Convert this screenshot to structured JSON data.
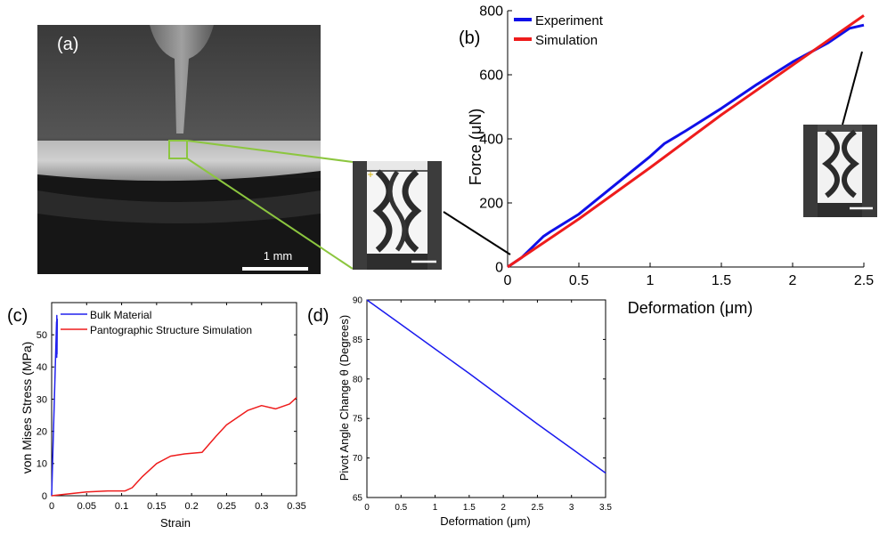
{
  "panels": {
    "a": {
      "label": "(a)",
      "scale_bar": "1 mm"
    },
    "b": {
      "label": "(b)"
    },
    "c": {
      "label": "(c)"
    },
    "d": {
      "label": "(d)"
    }
  },
  "colors": {
    "experiment": "#1010e8",
    "simulation": "#ee1c1c",
    "bulk": "#2222ee",
    "pantograph": "#ee1c1c",
    "pivot": "#1a1aee",
    "inset_border": "#8cc63f"
  },
  "chart_data": [
    {
      "panel": "b",
      "type": "line",
      "title": "",
      "xlabel": "Deformation (μm)",
      "ylabel": "Force (μN)",
      "xlim": [
        0,
        2.5
      ],
      "ylim": [
        0,
        800
      ],
      "xticks": [
        0,
        0.5,
        1,
        1.5,
        2,
        2.5
      ],
      "xtick_labels": [
        "0",
        "0.5",
        "1",
        "1.5",
        "2",
        "2.5"
      ],
      "yticks": [
        0,
        200,
        400,
        600,
        800
      ],
      "ytick_labels": [
        "0",
        "200",
        "400",
        "600",
        "800"
      ],
      "grid": false,
      "legend": "top-left",
      "series": [
        {
          "name": "Experiment",
          "color": "#1010e8",
          "x": [
            0,
            0.1,
            0.25,
            0.3,
            0.5,
            0.75,
            1.0,
            1.1,
            1.25,
            1.5,
            1.75,
            2.0,
            2.25,
            2.4,
            2.5
          ],
          "y": [
            0,
            30,
            95,
            110,
            165,
            255,
            345,
            385,
            425,
            495,
            570,
            640,
            700,
            745,
            755
          ]
        },
        {
          "name": "Simulation",
          "color": "#ee1c1c",
          "x": [
            0,
            0.5,
            1.0,
            1.5,
            2.0,
            2.5
          ],
          "y": [
            0,
            150,
            310,
            475,
            630,
            785
          ]
        }
      ]
    },
    {
      "panel": "c",
      "type": "line",
      "title": "",
      "xlabel": "Strain",
      "ylabel": "von Mises Stress (MPa)",
      "xlim": [
        0,
        0.35
      ],
      "ylim": [
        0,
        60
      ],
      "xticks": [
        0,
        0.05,
        0.1,
        0.15,
        0.2,
        0.25,
        0.3,
        0.35
      ],
      "xtick_labels": [
        "0",
        "0.05",
        "0.1",
        "0.15",
        "0.2",
        "0.25",
        "0.3",
        "0.35"
      ],
      "yticks": [
        0,
        10,
        20,
        30,
        40,
        50
      ],
      "ytick_labels": [
        "0",
        "10",
        "20",
        "30",
        "40",
        "50"
      ],
      "grid": false,
      "legend": "top-left",
      "series": [
        {
          "name": "Bulk Material",
          "color": "#2222ee",
          "x": [
            0,
            0.007,
            0.0072,
            0.0074,
            0.0077,
            0.008
          ],
          "y": [
            0,
            54,
            43,
            56,
            44,
            55
          ]
        },
        {
          "name": "Pantographic Structure Simulation",
          "color": "#ee1c1c",
          "x": [
            0,
            0.02,
            0.05,
            0.08,
            0.105,
            0.115,
            0.13,
            0.15,
            0.17,
            0.19,
            0.215,
            0.235,
            0.25,
            0.28,
            0.3,
            0.32,
            0.34,
            0.35
          ],
          "y": [
            0,
            0.5,
            1.2,
            1.5,
            1.5,
            2.5,
            6,
            10,
            12.3,
            13,
            13.5,
            18.5,
            22,
            26.5,
            28,
            27,
            28.5,
            30.5
          ]
        }
      ]
    },
    {
      "panel": "d",
      "type": "line",
      "title": "",
      "xlabel": "Deformation (μm)",
      "ylabel": "Pivot Angle Change θ (Degrees)",
      "xlim": [
        0,
        3.5
      ],
      "ylim": [
        65,
        90
      ],
      "xticks": [
        0,
        0.5,
        1,
        1.5,
        2,
        2.5,
        3,
        3.5
      ],
      "xtick_labels": [
        "0",
        "0.5",
        "1",
        "1.5",
        "2",
        "2.5",
        "3",
        "3.5"
      ],
      "yticks": [
        65,
        70,
        75,
        80,
        85,
        90
      ],
      "ytick_labels": [
        "65",
        "70",
        "75",
        "80",
        "85",
        "90"
      ],
      "grid": false,
      "legend": "none",
      "series": [
        {
          "color": "#1a1aee",
          "x": [
            0,
            0.5,
            1,
            1.5,
            2,
            2.5,
            3,
            3.5
          ],
          "y": [
            90,
            86.9,
            83.8,
            80.7,
            77.5,
            74.3,
            71.2,
            68.1
          ]
        }
      ]
    }
  ]
}
